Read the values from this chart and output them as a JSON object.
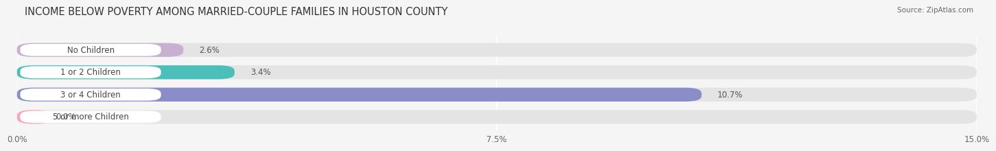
{
  "title": "INCOME BELOW POVERTY AMONG MARRIED-COUPLE FAMILIES IN HOUSTON COUNTY",
  "source": "Source: ZipAtlas.com",
  "categories": [
    "No Children",
    "1 or 2 Children",
    "3 or 4 Children",
    "5 or more Children"
  ],
  "values": [
    2.6,
    3.4,
    10.7,
    0.0
  ],
  "bar_colors": [
    "#c9afd0",
    "#4dbfbb",
    "#8b8dc8",
    "#f4a8bc"
  ],
  "xlim": [
    0,
    15.0
  ],
  "xticks": [
    0.0,
    7.5,
    15.0
  ],
  "xticklabels": [
    "0.0%",
    "7.5%",
    "15.0%"
  ],
  "bar_height": 0.62,
  "background_color": "#f5f5f5",
  "bar_bg_color": "#e4e4e4",
  "title_fontsize": 10.5,
  "label_fontsize": 8.5,
  "value_fontsize": 8.5,
  "tick_fontsize": 8.5,
  "label_pill_color": "#ffffff",
  "label_text_color": "#444444",
  "value_text_color": "#555555"
}
